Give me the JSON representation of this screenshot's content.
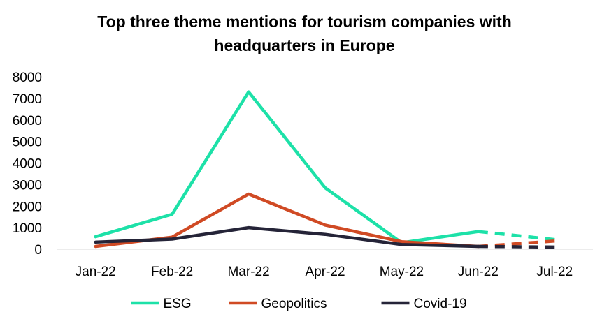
{
  "chart_data": {
    "type": "line",
    "title_line1": "Top three theme mentions for tourism companies with",
    "title_line2": "headquarters in Europe",
    "categories": [
      "Jan-22",
      "Feb-22",
      "Mar-22",
      "Apr-22",
      "May-22",
      "Jun-22",
      "Jul-22"
    ],
    "ylim": [
      0,
      8000
    ],
    "yticks": [
      0,
      1000,
      2000,
      3000,
      4000,
      5000,
      6000,
      7000,
      8000
    ],
    "xlabel": "",
    "ylabel": "",
    "grid": false,
    "legend_position": "bottom",
    "dashed_from_index": 5,
    "series": [
      {
        "name": "ESG",
        "color": "#1de1a8",
        "values": [
          580,
          1620,
          7300,
          2850,
          300,
          820,
          450
        ]
      },
      {
        "name": "Geopolitics",
        "color": "#d04a24",
        "values": [
          130,
          560,
          2560,
          1120,
          350,
          130,
          380
        ]
      },
      {
        "name": "Covid-19",
        "color": "#252438",
        "values": [
          330,
          470,
          1000,
          690,
          220,
          130,
          100
        ]
      }
    ]
  }
}
